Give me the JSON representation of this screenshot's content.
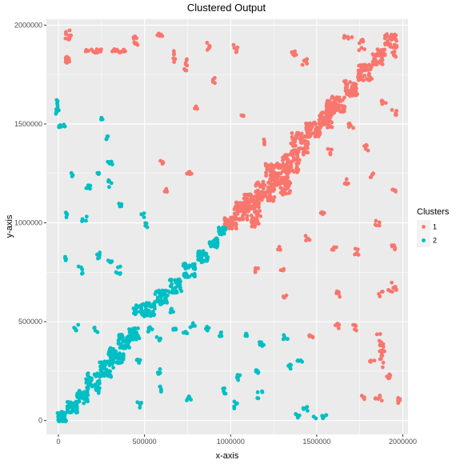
{
  "chart_data": {
    "type": "scatter",
    "title": "Clustered Output",
    "xlabel": "x-axis",
    "ylabel": "y-axis",
    "xlim": [
      -70000,
      2030000
    ],
    "ylim": [
      -70000,
      2030000
    ],
    "xticks": [
      0,
      500000,
      1000000,
      1500000,
      2000000
    ],
    "yticks": [
      0,
      500000,
      1000000,
      1500000,
      2000000
    ],
    "xtick_labels": [
      "0",
      "500000",
      "1000000",
      "1500000",
      "2000000"
    ],
    "ytick_labels": [
      "0",
      "500000",
      "1000000",
      "1500000",
      "2000000"
    ],
    "grid": true,
    "legend": {
      "title": "Clusters",
      "placement": "right",
      "entries": [
        {
          "label": "1",
          "color": "#F8766D"
        },
        {
          "label": "2",
          "color": "#00BFC4"
        }
      ]
    },
    "series": [
      {
        "name": "1",
        "color": "#F8766D",
        "clusters": [
          [
            1000000,
            1000000,
            35000,
            30000,
            45
          ],
          [
            1060000,
            1060000,
            40000,
            45000,
            60
          ],
          [
            1120000,
            1100000,
            45000,
            45000,
            60
          ],
          [
            1200000,
            1160000,
            55000,
            50000,
            70
          ],
          [
            1280000,
            1240000,
            55000,
            55000,
            70
          ],
          [
            1350000,
            1300000,
            50000,
            50000,
            60
          ],
          [
            1400000,
            1400000,
            50000,
            55000,
            60
          ],
          [
            1480000,
            1470000,
            45000,
            40000,
            50
          ],
          [
            1550000,
            1520000,
            40000,
            40000,
            45
          ],
          [
            1620000,
            1600000,
            45000,
            40000,
            50
          ],
          [
            1700000,
            1680000,
            40000,
            40000,
            45
          ],
          [
            1780000,
            1760000,
            40000,
            40000,
            45
          ],
          [
            1860000,
            1840000,
            40000,
            40000,
            45
          ],
          [
            1930000,
            1920000,
            35000,
            35000,
            40
          ],
          [
            1580000,
            1590000,
            30000,
            30000,
            30
          ],
          [
            1240000,
            1260000,
            40000,
            40000,
            40
          ],
          [
            1150000,
            1020000,
            30000,
            40000,
            30
          ],
          [
            1320000,
            1180000,
            30000,
            40000,
            30
          ],
          [
            60000,
            1950000,
            20000,
            25000,
            12
          ],
          [
            50000,
            1830000,
            15000,
            25000,
            10
          ],
          [
            200000,
            1870000,
            50000,
            10000,
            14
          ],
          [
            350000,
            1870000,
            40000,
            10000,
            14
          ],
          [
            450000,
            1920000,
            15000,
            25000,
            8
          ],
          [
            580000,
            1950000,
            25000,
            10000,
            6
          ],
          [
            670000,
            1840000,
            10000,
            30000,
            6
          ],
          [
            740000,
            1800000,
            10000,
            30000,
            8
          ],
          [
            870000,
            1890000,
            10000,
            30000,
            6
          ],
          [
            1030000,
            1880000,
            15000,
            20000,
            6
          ],
          [
            1370000,
            1850000,
            15000,
            20000,
            6
          ],
          [
            1430000,
            1810000,
            15000,
            20000,
            6
          ],
          [
            1680000,
            1940000,
            25000,
            10000,
            6
          ],
          [
            1760000,
            1900000,
            20000,
            30000,
            8
          ],
          [
            1950000,
            1850000,
            15000,
            20000,
            6
          ],
          [
            1600000,
            1570000,
            15000,
            15000,
            5
          ],
          [
            1890000,
            1610000,
            15000,
            10000,
            5
          ],
          [
            1700000,
            1490000,
            15000,
            15000,
            5
          ],
          [
            1580000,
            1360000,
            15000,
            15000,
            5
          ],
          [
            1790000,
            1380000,
            15000,
            15000,
            5
          ],
          [
            1950000,
            1560000,
            15000,
            15000,
            5
          ],
          [
            800000,
            1590000,
            10000,
            15000,
            5
          ],
          [
            900000,
            1720000,
            10000,
            15000,
            5
          ],
          [
            1070000,
            1540000,
            10000,
            15000,
            4
          ],
          [
            1190000,
            1410000,
            10000,
            15000,
            4
          ],
          [
            760000,
            1250000,
            15000,
            15000,
            5
          ],
          [
            600000,
            1310000,
            10000,
            15000,
            4
          ],
          [
            620000,
            1170000,
            10000,
            15000,
            4
          ],
          [
            1670000,
            1210000,
            15000,
            15000,
            5
          ],
          [
            1820000,
            1240000,
            15000,
            15000,
            5
          ],
          [
            1950000,
            1170000,
            10000,
            15000,
            4
          ],
          [
            1530000,
            1040000,
            15000,
            15000,
            5
          ],
          [
            1850000,
            1000000,
            15000,
            15000,
            5
          ],
          [
            1450000,
            920000,
            15000,
            15000,
            5
          ],
          [
            1600000,
            870000,
            15000,
            15000,
            5
          ],
          [
            1740000,
            850000,
            20000,
            20000,
            6
          ],
          [
            1950000,
            880000,
            15000,
            15000,
            5
          ],
          [
            1280000,
            870000,
            10000,
            15000,
            4
          ],
          [
            1150000,
            760000,
            10000,
            15000,
            4
          ],
          [
            1300000,
            760000,
            10000,
            15000,
            4
          ],
          [
            1310000,
            620000,
            15000,
            15000,
            5
          ],
          [
            1620000,
            640000,
            15000,
            15000,
            5
          ],
          [
            1870000,
            640000,
            15000,
            15000,
            5
          ],
          [
            1950000,
            680000,
            15000,
            20000,
            6
          ],
          [
            1860000,
            410000,
            15000,
            30000,
            6
          ],
          [
            1620000,
            480000,
            15000,
            15000,
            5
          ],
          [
            1470000,
            430000,
            15000,
            15000,
            5
          ],
          [
            1920000,
            220000,
            15000,
            15000,
            5
          ],
          [
            1880000,
            360000,
            15000,
            40000,
            8
          ],
          [
            1860000,
            120000,
            20000,
            20000,
            6
          ],
          [
            1980000,
            100000,
            15000,
            15000,
            5
          ],
          [
            1770000,
            120000,
            15000,
            15000,
            5
          ],
          [
            1820000,
            300000,
            15000,
            15000,
            5
          ],
          [
            1720000,
            470000,
            15000,
            15000,
            5
          ],
          [
            1880000,
            310000,
            15000,
            60000,
            8
          ],
          [
            1930000,
            660000,
            15000,
            15000,
            5
          ]
        ]
      },
      {
        "name": "2",
        "color": "#00BFC4",
        "clusters": [
          [
            20000,
            20000,
            25000,
            25000,
            40
          ],
          [
            80000,
            70000,
            30000,
            30000,
            40
          ],
          [
            140000,
            120000,
            35000,
            35000,
            40
          ],
          [
            200000,
            200000,
            40000,
            40000,
            45
          ],
          [
            280000,
            260000,
            40000,
            40000,
            45
          ],
          [
            340000,
            330000,
            40000,
            40000,
            45
          ],
          [
            380000,
            400000,
            35000,
            35000,
            40
          ],
          [
            440000,
            440000,
            30000,
            30000,
            35
          ],
          [
            520000,
            560000,
            40000,
            40000,
            45
          ],
          [
            600000,
            620000,
            40000,
            40000,
            45
          ],
          [
            680000,
            680000,
            35000,
            35000,
            40
          ],
          [
            760000,
            760000,
            35000,
            35000,
            40
          ],
          [
            840000,
            830000,
            30000,
            30000,
            35
          ],
          [
            900000,
            900000,
            25000,
            25000,
            30
          ],
          [
            950000,
            960000,
            20000,
            20000,
            25
          ],
          [
            300000,
            350000,
            20000,
            20000,
            15
          ],
          [
            460000,
            560000,
            25000,
            25000,
            20
          ],
          [
            0,
            1590000,
            15000,
            40000,
            10
          ],
          [
            20000,
            1490000,
            20000,
            10000,
            8
          ],
          [
            80000,
            1240000,
            10000,
            15000,
            5
          ],
          [
            170000,
            1180000,
            15000,
            15000,
            6
          ],
          [
            300000,
            1300000,
            15000,
            10000,
            5
          ],
          [
            300000,
            1200000,
            10000,
            20000,
            5
          ],
          [
            360000,
            1090000,
            10000,
            15000,
            5
          ],
          [
            150000,
            1020000,
            15000,
            15000,
            5
          ],
          [
            40000,
            1040000,
            10000,
            15000,
            5
          ],
          [
            230000,
            1250000,
            10000,
            15000,
            4
          ],
          [
            250000,
            1530000,
            10000,
            15000,
            4
          ],
          [
            280000,
            1430000,
            10000,
            10000,
            4
          ],
          [
            490000,
            1040000,
            10000,
            15000,
            4
          ],
          [
            510000,
            990000,
            10000,
            15000,
            4
          ],
          [
            230000,
            830000,
            15000,
            20000,
            6
          ],
          [
            130000,
            760000,
            20000,
            20000,
            6
          ],
          [
            350000,
            760000,
            20000,
            20000,
            6
          ],
          [
            40000,
            820000,
            10000,
            10000,
            4
          ],
          [
            300000,
            800000,
            15000,
            15000,
            5
          ],
          [
            100000,
            470000,
            15000,
            15000,
            5
          ],
          [
            220000,
            460000,
            15000,
            15000,
            5
          ],
          [
            530000,
            460000,
            15000,
            15000,
            5
          ],
          [
            680000,
            470000,
            15000,
            15000,
            5
          ],
          [
            580000,
            410000,
            15000,
            15000,
            5
          ],
          [
            740000,
            450000,
            15000,
            15000,
            5
          ],
          [
            860000,
            470000,
            15000,
            15000,
            5
          ],
          [
            950000,
            440000,
            15000,
            15000,
            5
          ],
          [
            1100000,
            440000,
            15000,
            15000,
            5
          ],
          [
            1180000,
            390000,
            15000,
            25000,
            6
          ],
          [
            1320000,
            420000,
            15000,
            15000,
            5
          ],
          [
            1400000,
            310000,
            15000,
            15000,
            5
          ],
          [
            1340000,
            270000,
            15000,
            15000,
            5
          ],
          [
            1160000,
            250000,
            15000,
            15000,
            5
          ],
          [
            1050000,
            220000,
            15000,
            15000,
            5
          ],
          [
            960000,
            150000,
            15000,
            15000,
            5
          ],
          [
            1030000,
            80000,
            15000,
            20000,
            5
          ],
          [
            760000,
            110000,
            15000,
            15000,
            5
          ],
          [
            600000,
            160000,
            15000,
            15000,
            5
          ],
          [
            470000,
            80000,
            15000,
            15000,
            5
          ],
          [
            230000,
            150000,
            15000,
            15000,
            5
          ],
          [
            1170000,
            130000,
            15000,
            20000,
            5
          ],
          [
            1430000,
            60000,
            20000,
            15000,
            5
          ],
          [
            1520000,
            20000,
            40000,
            10000,
            8
          ],
          [
            1390000,
            30000,
            15000,
            15000,
            4
          ],
          [
            460000,
            300000,
            15000,
            15000,
            5
          ],
          [
            590000,
            250000,
            15000,
            15000,
            5
          ],
          [
            660000,
            560000,
            15000,
            15000,
            5
          ],
          [
            780000,
            480000,
            15000,
            15000,
            5
          ]
        ]
      }
    ]
  }
}
